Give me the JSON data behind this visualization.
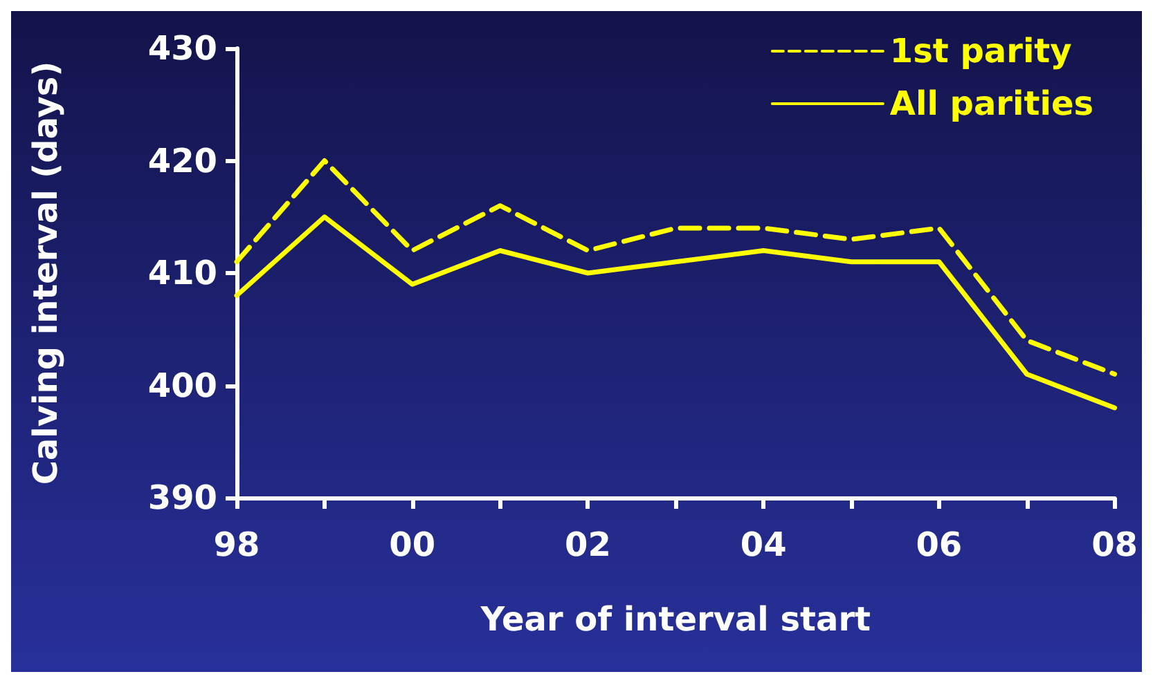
{
  "chart_data": {
    "type": "line",
    "xlabel": "Year of interval start",
    "ylabel": "Calving interval (days)",
    "categories": [
      "98",
      null,
      "00",
      null,
      "02",
      null,
      "04",
      null,
      "06",
      null,
      "08"
    ],
    "series": [
      {
        "name": "1st parity",
        "color": "#ffff00",
        "line_style": "dashed",
        "values": [
          411,
          420,
          412,
          416,
          412,
          414,
          414,
          413,
          414,
          404,
          401
        ]
      },
      {
        "name": "All parities",
        "color": "#ffff00",
        "line_style": "solid",
        "values": [
          408,
          415,
          409,
          412,
          410,
          411,
          412,
          411,
          411,
          401,
          398
        ]
      }
    ],
    "ylim": [
      390,
      430
    ],
    "yticks": [
      390,
      400,
      410,
      420,
      430
    ],
    "grid": false,
    "legend": "top right",
    "marker": "none"
  }
}
